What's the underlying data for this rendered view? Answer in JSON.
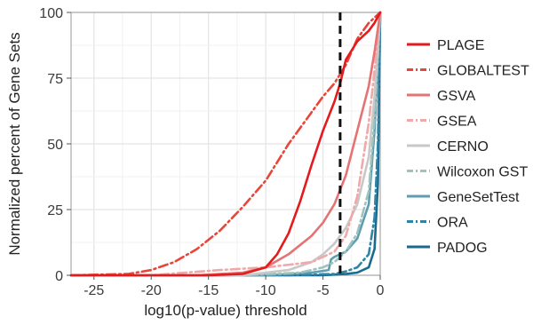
{
  "chart_data": {
    "type": "line",
    "xlabel": "log10(p-value) threshold",
    "ylabel": "Normalized percent of Gene Sets",
    "xlim": [
      -27,
      0
    ],
    "ylim": [
      0,
      100
    ],
    "x_ticks": [
      -25,
      -20,
      -15,
      -10,
      -5,
      0
    ],
    "y_ticks": [
      0,
      25,
      50,
      75,
      100
    ],
    "x_tick_labels": [
      "-25",
      "-20",
      "-15",
      "-10",
      "-5",
      "0"
    ],
    "y_tick_labels": [
      "0",
      "25",
      "50",
      "75",
      "100"
    ],
    "grid": true,
    "legend_position": "right",
    "threshold_line": {
      "x": -3.5,
      "style": "dashed",
      "color": "#111111"
    },
    "series": [
      {
        "name": "PLAGE",
        "color": "#e41a1c",
        "dash": "solid",
        "points": [
          [
            -27,
            0
          ],
          [
            -15,
            0
          ],
          [
            -12,
            0.5
          ],
          [
            -10,
            3
          ],
          [
            -9,
            8
          ],
          [
            -8,
            16
          ],
          [
            -7,
            28
          ],
          [
            -6,
            42
          ],
          [
            -5,
            55
          ],
          [
            -4,
            66
          ],
          [
            -3.5,
            73
          ],
          [
            -3,
            82
          ],
          [
            -2,
            89
          ],
          [
            -1,
            93
          ],
          [
            -0.5,
            96
          ],
          [
            0,
            100
          ]
        ]
      },
      {
        "name": "GLOBALTEST",
        "color": "#e8463a",
        "dash": "dashdot",
        "points": [
          [
            -27,
            0
          ],
          [
            -22,
            0.5
          ],
          [
            -20,
            2
          ],
          [
            -18,
            5
          ],
          [
            -16,
            10
          ],
          [
            -14,
            17
          ],
          [
            -12,
            26
          ],
          [
            -10,
            36
          ],
          [
            -8,
            50
          ],
          [
            -6,
            62
          ],
          [
            -5,
            68
          ],
          [
            -4,
            73
          ],
          [
            -3,
            80
          ],
          [
            -2,
            90
          ],
          [
            -1,
            96
          ],
          [
            0,
            100
          ]
        ]
      },
      {
        "name": "GSVA",
        "color": "#e57373",
        "dash": "solid",
        "points": [
          [
            -27,
            0
          ],
          [
            -16,
            0
          ],
          [
            -12,
            1
          ],
          [
            -10,
            3
          ],
          [
            -8,
            8
          ],
          [
            -6,
            15
          ],
          [
            -5,
            20
          ],
          [
            -4,
            27
          ],
          [
            -3,
            38
          ],
          [
            -2,
            55
          ],
          [
            -1,
            72
          ],
          [
            -0.5,
            85
          ],
          [
            0,
            100
          ]
        ]
      },
      {
        "name": "GSEA",
        "color": "#f0a8a8",
        "dash": "dashdot",
        "points": [
          [
            -27,
            0
          ],
          [
            -20,
            0
          ],
          [
            -17,
            1
          ],
          [
            -14,
            2
          ],
          [
            -10,
            3
          ],
          [
            -6,
            5
          ],
          [
            -4,
            9
          ],
          [
            -3,
            15
          ],
          [
            -2,
            30
          ],
          [
            -1,
            58
          ],
          [
            -0.5,
            78
          ],
          [
            0,
            100
          ]
        ]
      },
      {
        "name": "CERNO",
        "color": "#c8c8c8",
        "dash": "solid",
        "points": [
          [
            -27,
            0
          ],
          [
            -12,
            0
          ],
          [
            -8,
            2
          ],
          [
            -6,
            5
          ],
          [
            -5,
            8
          ],
          [
            -4,
            12
          ],
          [
            -3,
            18
          ],
          [
            -2,
            27
          ],
          [
            -1,
            45
          ],
          [
            -0.5,
            68
          ],
          [
            0,
            100
          ]
        ]
      },
      {
        "name": "Wilcoxon GST",
        "color": "#9fc2bd",
        "dash": "dashdot",
        "points": [
          [
            -27,
            0
          ],
          [
            -12,
            0
          ],
          [
            -7,
            1
          ],
          [
            -5,
            3
          ],
          [
            -4,
            5
          ],
          [
            -3,
            9
          ],
          [
            -2,
            16
          ],
          [
            -1,
            32
          ],
          [
            -0.5,
            60
          ],
          [
            0,
            100
          ]
        ]
      },
      {
        "name": "GeneSetTest",
        "color": "#5f9eb1",
        "dash": "solid",
        "points": [
          [
            -27,
            0
          ],
          [
            -10,
            0
          ],
          [
            -6,
            1
          ],
          [
            -4.5,
            2
          ],
          [
            -4.3,
            6
          ],
          [
            -4,
            7
          ],
          [
            -3,
            9
          ],
          [
            -2,
            14
          ],
          [
            -1,
            27
          ],
          [
            -0.5,
            55
          ],
          [
            0,
            100
          ]
        ]
      },
      {
        "name": "ORA",
        "color": "#2f84a6",
        "dash": "dashdot",
        "points": [
          [
            -27,
            0
          ],
          [
            -8,
            0
          ],
          [
            -4,
            0.5
          ],
          [
            -3,
            1.5
          ],
          [
            -2,
            3
          ],
          [
            -1,
            8
          ],
          [
            -0.5,
            22
          ],
          [
            -0.2,
            50
          ],
          [
            0,
            100
          ]
        ]
      },
      {
        "name": "PADOG",
        "color": "#1a6a8e",
        "dash": "solid",
        "points": [
          [
            -27,
            0
          ],
          [
            -5,
            0
          ],
          [
            -3,
            0.5
          ],
          [
            -2,
            1
          ],
          [
            -1,
            3
          ],
          [
            -0.5,
            10
          ],
          [
            -0.2,
            35
          ],
          [
            0,
            100
          ]
        ]
      }
    ]
  }
}
